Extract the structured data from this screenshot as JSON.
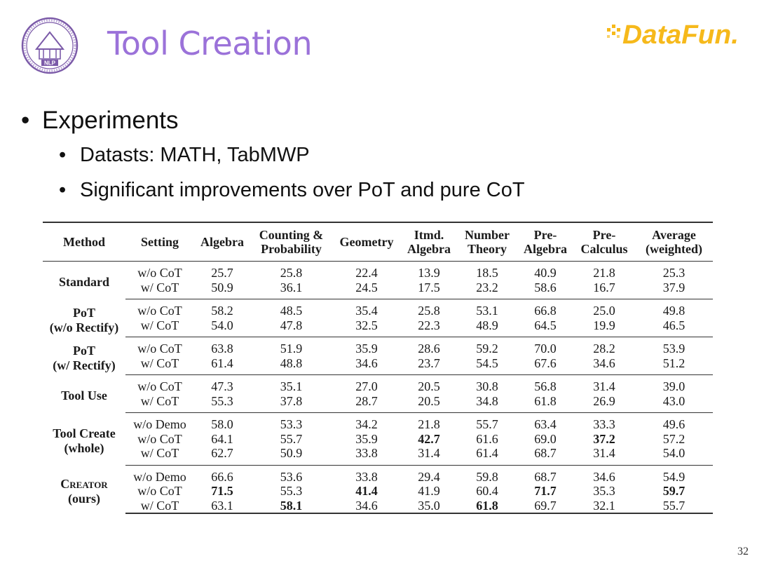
{
  "title": "Tool Creation",
  "brand_logo_text": "DataFun.",
  "seal_logo_text": "NLP",
  "bullets": {
    "main": "Experiments",
    "sub": [
      "Datasts: MATH, TabMWP",
      "Significant improvements over PoT and pure CoT"
    ]
  },
  "table": {
    "headers": [
      [
        "Method"
      ],
      [
        "Setting"
      ],
      [
        "Algebra"
      ],
      [
        "Counting &",
        "Probability"
      ],
      [
        "Geometry"
      ],
      [
        "Itmd.",
        "Algebra"
      ],
      [
        "Number",
        "Theory"
      ],
      [
        "Pre-",
        "Algebra"
      ],
      [
        "Pre-",
        "Calculus"
      ],
      [
        "Average",
        "(weighted)"
      ]
    ],
    "groups": [
      {
        "method": [
          "Standard"
        ],
        "rows": [
          {
            "setting": "w/o CoT",
            "values": [
              "25.7",
              "25.8",
              "22.4",
              "13.9",
              "18.5",
              "40.9",
              "21.8",
              "25.3"
            ]
          },
          {
            "setting": "w/ CoT",
            "values": [
              "50.9",
              "36.1",
              "24.5",
              "17.5",
              "23.2",
              "58.6",
              "16.7",
              "37.9"
            ]
          }
        ]
      },
      {
        "method": [
          "PoT",
          "(w/o Rectify)"
        ],
        "rows": [
          {
            "setting": "w/o CoT",
            "values": [
              "58.2",
              "48.5",
              "35.4",
              "25.8",
              "53.1",
              "66.8",
              "25.0",
              "49.8"
            ]
          },
          {
            "setting": "w/ CoT",
            "values": [
              "54.0",
              "47.8",
              "32.5",
              "22.3",
              "48.9",
              "64.5",
              "19.9",
              "46.5"
            ]
          }
        ]
      },
      {
        "method": [
          "PoT",
          "(w/ Rectify)"
        ],
        "rows": [
          {
            "setting": "w/o CoT",
            "values": [
              "63.8",
              "51.9",
              "35.9",
              "28.6",
              "59.2",
              "70.0",
              "28.2",
              "53.9"
            ]
          },
          {
            "setting": "w/ CoT",
            "values": [
              "61.4",
              "48.8",
              "34.6",
              "23.7",
              "54.5",
              "67.6",
              "34.6",
              "51.2"
            ]
          }
        ]
      },
      {
        "method": [
          "Tool Use"
        ],
        "rows": [
          {
            "setting": "w/o CoT",
            "values": [
              "47.3",
              "35.1",
              "27.0",
              "20.5",
              "30.8",
              "56.8",
              "31.4",
              "39.0"
            ]
          },
          {
            "setting": "w/ CoT",
            "values": [
              "55.3",
              "37.8",
              "28.7",
              "20.5",
              "34.8",
              "61.8",
              "26.9",
              "43.0"
            ]
          }
        ]
      },
      {
        "method": [
          "Tool Create",
          "(whole)"
        ],
        "rows": [
          {
            "setting": "w/o Demo",
            "values": [
              "58.0",
              "53.3",
              "34.2",
              "21.8",
              "55.7",
              "63.4",
              "33.3",
              "49.6"
            ]
          },
          {
            "setting": "w/o CoT",
            "values": [
              "64.1",
              "55.7",
              "35.9",
              "42.7",
              "61.6",
              "69.0",
              "37.2",
              "57.2"
            ],
            "bold": [
              3,
              6
            ]
          },
          {
            "setting": "w/ CoT",
            "values": [
              "62.7",
              "50.9",
              "33.8",
              "31.4",
              "61.4",
              "68.7",
              "31.4",
              "54.0"
            ]
          }
        ]
      },
      {
        "method": [
          "Creator",
          "(ours)"
        ],
        "smallcaps": true,
        "rows": [
          {
            "setting": "w/o Demo",
            "values": [
              "66.6",
              "53.6",
              "33.8",
              "29.4",
              "59.8",
              "68.7",
              "34.6",
              "54.9"
            ]
          },
          {
            "setting": "w/o CoT",
            "values": [
              "71.5",
              "55.3",
              "41.4",
              "41.9",
              "60.4",
              "71.7",
              "35.3",
              "59.7"
            ],
            "bold": [
              0,
              2,
              5,
              7
            ]
          },
          {
            "setting": "w/ CoT",
            "values": [
              "63.1",
              "58.1",
              "34.6",
              "35.0",
              "61.8",
              "69.7",
              "32.1",
              "55.7"
            ],
            "bold": [
              1,
              4
            ]
          }
        ]
      }
    ]
  },
  "page_number": "32",
  "colors": {
    "title": "#9b72d9",
    "seal": "#7b5aa8",
    "brand_yellow": "#f6b91b",
    "brand_red": "#e8452c"
  }
}
